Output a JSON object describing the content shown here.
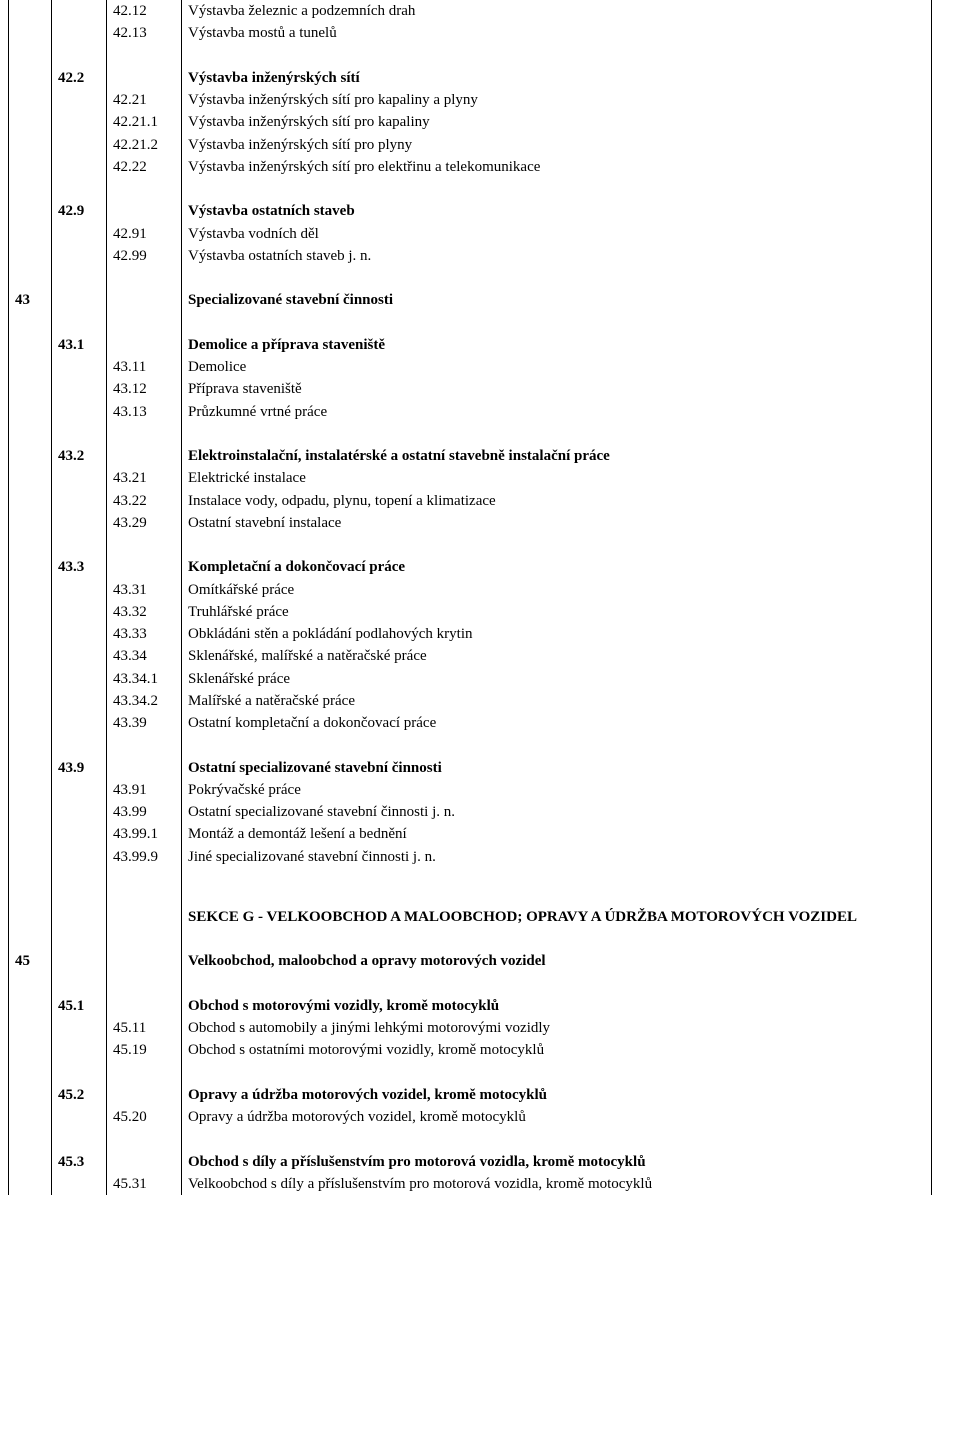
{
  "rows": [
    {
      "c0": "",
      "c1": "",
      "c2": "42.12",
      "c3": "Výstavba železnic a podzemních drah",
      "bold": false
    },
    {
      "c0": "",
      "c1": "",
      "c2": "42.13",
      "c3": "Výstavba mostů a tunelů",
      "bold": false
    },
    {
      "spacer": true
    },
    {
      "c0": "",
      "c1": "42.2",
      "c2": "",
      "c3": "Výstavba inženýrských sítí",
      "bold": true
    },
    {
      "c0": "",
      "c1": "",
      "c2": "42.21",
      "c3": "Výstavba inženýrských sítí pro kapaliny a plyny",
      "bold": false
    },
    {
      "c0": "",
      "c1": "",
      "c2": "42.21.1",
      "c3": "Výstavba inženýrských sítí pro kapaliny",
      "bold": false
    },
    {
      "c0": "",
      "c1": "",
      "c2": "42.21.2",
      "c3": "Výstavba inženýrských sítí pro plyny",
      "bold": false
    },
    {
      "c0": "",
      "c1": "",
      "c2": "42.22",
      "c3": "Výstavba inženýrských sítí pro elektřinu a telekomunikace",
      "bold": false
    },
    {
      "spacer": true
    },
    {
      "c0": "",
      "c1": "42.9",
      "c2": "",
      "c3": "Výstavba ostatních staveb",
      "bold": true
    },
    {
      "c0": "",
      "c1": "",
      "c2": "42.91",
      "c3": "Výstavba vodních děl",
      "bold": false
    },
    {
      "c0": "",
      "c1": "",
      "c2": "42.99",
      "c3": "Výstavba ostatních staveb j. n.",
      "bold": false
    },
    {
      "spacer": true
    },
    {
      "c0": "43",
      "c1": "",
      "c2": "",
      "c3": "Specializované stavební činnosti",
      "bold": true
    },
    {
      "spacer": true
    },
    {
      "c0": "",
      "c1": "43.1",
      "c2": "",
      "c3": "Demolice a příprava staveniště",
      "bold": true
    },
    {
      "c0": "",
      "c1": "",
      "c2": "43.11",
      "c3": "Demolice",
      "bold": false
    },
    {
      "c0": "",
      "c1": "",
      "c2": "43.12",
      "c3": "Příprava staveniště",
      "bold": false
    },
    {
      "c0": "",
      "c1": "",
      "c2": "43.13",
      "c3": "Průzkumné vrtné práce",
      "bold": false
    },
    {
      "spacer": true
    },
    {
      "c0": "",
      "c1": "43.2",
      "c2": "",
      "c3": "Elektroinstalační, instalatérské a ostatní stavebně instalační práce",
      "bold": true
    },
    {
      "c0": "",
      "c1": "",
      "c2": "43.21",
      "c3": "Elektrické instalace",
      "bold": false
    },
    {
      "c0": "",
      "c1": "",
      "c2": "43.22",
      "c3": "Instalace vody, odpadu, plynu, topení a klimatizace",
      "bold": false
    },
    {
      "c0": "",
      "c1": "",
      "c2": "43.29",
      "c3": "Ostatní stavební instalace",
      "bold": false
    },
    {
      "spacer": true
    },
    {
      "c0": "",
      "c1": "43.3",
      "c2": "",
      "c3": "Kompletační a dokončovací práce",
      "bold": true
    },
    {
      "c0": "",
      "c1": "",
      "c2": "43.31",
      "c3": "Omítkářské práce",
      "bold": false
    },
    {
      "c0": "",
      "c1": "",
      "c2": "43.32",
      "c3": "Truhlářské práce",
      "bold": false
    },
    {
      "c0": "",
      "c1": "",
      "c2": "43.33",
      "c3": "Obkládáni stěn a pokládání podlahových krytin",
      "bold": false
    },
    {
      "c0": "",
      "c1": "",
      "c2": "43.34",
      "c3": "Sklenářské, malířské a natěračské práce",
      "bold": false
    },
    {
      "c0": "",
      "c1": "",
      "c2": "43.34.1",
      "c3": "Sklenářské práce",
      "bold": false
    },
    {
      "c0": "",
      "c1": "",
      "c2": "43.34.2",
      "c3": "Malířské a natěračské práce",
      "bold": false
    },
    {
      "c0": "",
      "c1": "",
      "c2": "43.39",
      "c3": "Ostatní kompletační a dokončovací práce",
      "bold": false
    },
    {
      "spacer": true
    },
    {
      "c0": "",
      "c1": "43.9",
      "c2": "",
      "c3": "Ostatní specializované stavební činnosti",
      "bold": true
    },
    {
      "c0": "",
      "c1": "",
      "c2": "43.91",
      "c3": "Pokrývačské práce",
      "bold": false
    },
    {
      "c0": "",
      "c1": "",
      "c2": "43.99",
      "c3": "Ostatní specializované stavební činnosti j. n.",
      "bold": false
    },
    {
      "c0": "",
      "c1": "",
      "c2": "43.99.1",
      "c3": "Montáž a demontáž lešení a bednění",
      "bold": false
    },
    {
      "c0": "",
      "c1": "",
      "c2": "43.99.9",
      "c3": "Jiné specializované stavební činnosti j. n.",
      "bold": false
    },
    {
      "bigspacer": true
    },
    {
      "c0": "",
      "c1": "",
      "c2": "",
      "c3": "SEKCE G - VELKOOBCHOD A MALOOBCHOD; OPRAVY A ÚDRŽBA MOTOROVÝCH VOZIDEL",
      "bold": true
    },
    {
      "spacer": true
    },
    {
      "c0": "45",
      "c1": "",
      "c2": "",
      "c3": "Velkoobchod, maloobchod a opravy motorových vozidel",
      "bold": true
    },
    {
      "spacer": true
    },
    {
      "c0": "",
      "c1": "45.1",
      "c2": "",
      "c3": "Obchod s motorovými vozidly, kromě motocyklů",
      "bold": true
    },
    {
      "c0": "",
      "c1": "",
      "c2": "45.11",
      "c3": "Obchod s automobily a jinými lehkými motorovými vozidly",
      "bold": false
    },
    {
      "c0": "",
      "c1": "",
      "c2": "45.19",
      "c3": "Obchod s ostatními motorovými vozidly, kromě motocyklů",
      "bold": false
    },
    {
      "spacer": true
    },
    {
      "c0": "",
      "c1": "45.2",
      "c2": "",
      "c3": "Opravy a údržba motorových vozidel, kromě motocyklů",
      "bold": true
    },
    {
      "c0": "",
      "c1": "",
      "c2": "45.20",
      "c3": "Opravy a údržba motorových vozidel, kromě motocyklů",
      "bold": false
    },
    {
      "spacer": true
    },
    {
      "c0": "",
      "c1": "45.3",
      "c2": "",
      "c3": "Obchod s díly a příslušenstvím pro motorová vozidla, kromě motocyklů",
      "bold": true
    },
    {
      "c0": "",
      "c1": "",
      "c2": "45.31",
      "c3": "Velkoobchod s díly a příslušenstvím pro motorová vozidla, kromě motocyklů",
      "bold": false
    }
  ]
}
